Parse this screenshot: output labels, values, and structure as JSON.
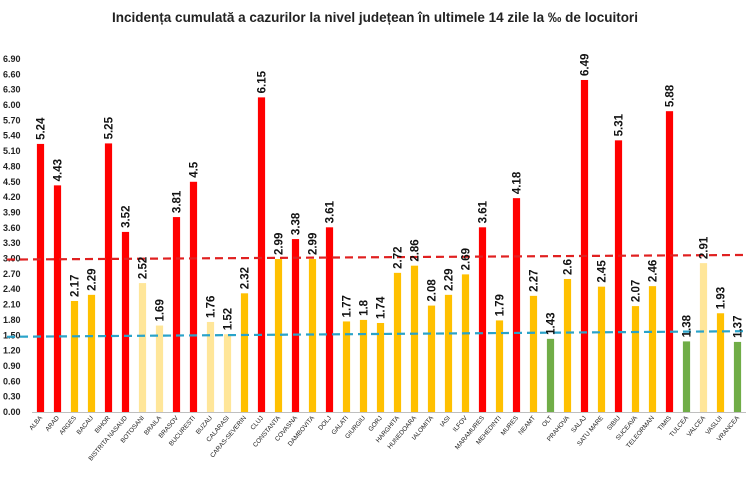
{
  "chart_data": {
    "type": "bar",
    "title": "Incidența cumulată a cazurilor la nivel județean în ultimele 14 zile la ‰ de locuitori",
    "xlabel": "",
    "ylabel": "",
    "ylim": [
      0,
      6.9
    ],
    "yticks": [
      "0.00",
      "0.30",
      "0.60",
      "0.90",
      "1.20",
      "1.50",
      "1.80",
      "2.10",
      "2.40",
      "2.70",
      "3.00",
      "3.30",
      "3.60",
      "3.90",
      "4.20",
      "4.50",
      "4.80",
      "5.10",
      "5.40",
      "5.70",
      "6.00",
      "6.30",
      "6.60",
      "6.90"
    ],
    "grid": false,
    "legend": "none",
    "categories": [
      "ALBA",
      "ARAD",
      "ARGES",
      "BACAU",
      "BIHOR",
      "BISTRITA NASAUD",
      "BOTOSANI",
      "BRAILA",
      "BRASOV",
      "BUCURESTI",
      "BUZAU",
      "CALARASI",
      "CARAS-SEVERIN",
      "CLUJ",
      "CONSTANTA",
      "COVASNA",
      "DAMBOVITA",
      "DOLJ",
      "GALATI",
      "GIURGIU",
      "GORJ",
      "HARGHITA",
      "HUNEDOARA",
      "IALOMITA",
      "IASI",
      "ILFOV",
      "MARAMURES",
      "MEHEDINTI",
      "MURES",
      "NEAMT",
      "OLT",
      "PRAHOVA",
      "SALAJ",
      "SATU MARE",
      "SIBIU",
      "SUCEAVA",
      "TELEORMAN",
      "TIMIS",
      "TULCEA",
      "VALCEA",
      "VASLUI",
      "VRANCEA"
    ],
    "values": [
      5.24,
      4.43,
      2.17,
      2.29,
      5.25,
      3.52,
      2.52,
      1.69,
      3.81,
      4.5,
      1.76,
      1.52,
      2.32,
      6.15,
      2.99,
      3.38,
      2.99,
      3.61,
      1.77,
      1.8,
      1.74,
      2.72,
      2.86,
      2.08,
      2.29,
      2.69,
      3.61,
      1.79,
      4.18,
      2.27,
      1.43,
      2.6,
      6.49,
      2.45,
      5.31,
      2.07,
      2.46,
      5.88,
      1.38,
      2.91,
      1.93,
      1.37
    ],
    "value_labels": [
      "5.24",
      "4.43",
      "2.17",
      "2.29",
      "5.25",
      "3.52",
      "2.52",
      "1.69",
      "3.81",
      "4.5",
      "1.76",
      "1.52",
      "2.32",
      "6.15",
      "2.99",
      "3.38",
      "2.99",
      "3.61",
      "1.77",
      "1.8",
      "1.74",
      "2.72",
      "2.86",
      "2.08",
      "2.29",
      "2.69",
      "3.61",
      "1.79",
      "4.18",
      "2.27",
      "1.43",
      "2.6",
      "6.49",
      "2.45",
      "5.31",
      "2.07",
      "2.46",
      "5.88",
      "1.38",
      "2.91",
      "1.93",
      "1.37"
    ],
    "bar_colors": {
      "red": "#ff0000",
      "orange": "#ffc000",
      "light_yellow": "#ffe699",
      "green": "#70ad47"
    },
    "bar_color_keys": [
      "red",
      "red",
      "orange",
      "orange",
      "red",
      "red",
      "light_yellow",
      "light_yellow",
      "red",
      "red",
      "light_yellow",
      "light_yellow",
      "orange",
      "red",
      "orange",
      "red",
      "orange",
      "red",
      "orange",
      "orange",
      "orange",
      "orange",
      "orange",
      "orange",
      "orange",
      "orange",
      "red",
      "orange",
      "red",
      "orange",
      "green",
      "orange",
      "red",
      "orange",
      "red",
      "orange",
      "orange",
      "red",
      "green",
      "light_yellow",
      "orange",
      "green"
    ],
    "reference_lines": [
      {
        "style": "dashed",
        "color": "#e02020",
        "y_start": 2.98,
        "y_end": 3.07
      },
      {
        "style": "dashed",
        "color": "#2aa3c9",
        "y_start": 1.47,
        "y_end": 1.58
      }
    ]
  }
}
